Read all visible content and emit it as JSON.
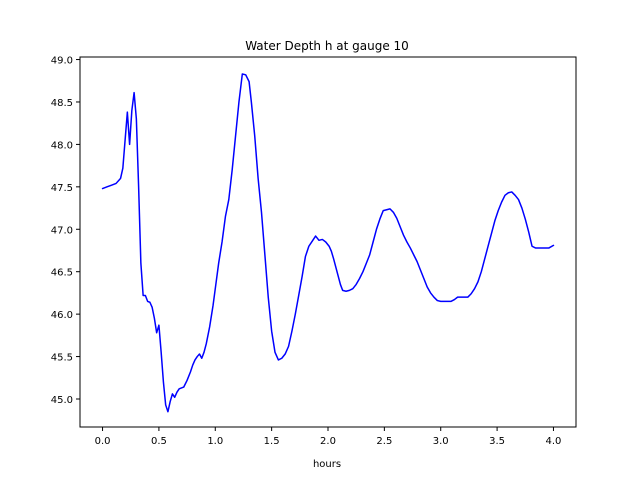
{
  "chart_data": {
    "type": "line",
    "title": "Water Depth h at gauge 10",
    "xlabel": "hours",
    "ylabel": "",
    "xlim": [
      -0.2,
      4.2
    ],
    "ylim": [
      44.67,
      49.03
    ],
    "xticks": [
      0.0,
      0.5,
      1.0,
      1.5,
      2.0,
      2.5,
      3.0,
      3.5,
      4.0
    ],
    "xtick_labels": [
      "0.0",
      "0.5",
      "1.0",
      "1.5",
      "2.0",
      "2.5",
      "3.0",
      "3.5",
      "4.0"
    ],
    "yticks": [
      45.0,
      45.5,
      46.0,
      46.5,
      47.0,
      47.5,
      48.0,
      48.5,
      49.0
    ],
    "ytick_labels": [
      "45.0",
      "45.5",
      "46.0",
      "46.5",
      "47.0",
      "47.5",
      "48.0",
      "48.5",
      "49.0"
    ],
    "grid": false,
    "series": [
      {
        "name": "h",
        "color": "#0000ff",
        "x": [
          0.0,
          0.04,
          0.08,
          0.12,
          0.16,
          0.18,
          0.2,
          0.22,
          0.24,
          0.26,
          0.28,
          0.3,
          0.32,
          0.34,
          0.36,
          0.38,
          0.4,
          0.42,
          0.44,
          0.46,
          0.48,
          0.5,
          0.52,
          0.54,
          0.56,
          0.58,
          0.6,
          0.62,
          0.64,
          0.66,
          0.68,
          0.7,
          0.72,
          0.75,
          0.78,
          0.8,
          0.82,
          0.84,
          0.86,
          0.88,
          0.9,
          0.92,
          0.95,
          0.98,
          1.0,
          1.03,
          1.06,
          1.09,
          1.12,
          1.15,
          1.18,
          1.21,
          1.24,
          1.27,
          1.3,
          1.32,
          1.35,
          1.38,
          1.41,
          1.44,
          1.47,
          1.5,
          1.53,
          1.56,
          1.59,
          1.62,
          1.65,
          1.68,
          1.71,
          1.74,
          1.77,
          1.8,
          1.83,
          1.86,
          1.89,
          1.92,
          1.95,
          1.98,
          2.01,
          2.03,
          2.05,
          2.07,
          2.09,
          2.11,
          2.13,
          2.16,
          2.19,
          2.22,
          2.25,
          2.28,
          2.31,
          2.34,
          2.37,
          2.4,
          2.43,
          2.46,
          2.49,
          2.52,
          2.55,
          2.58,
          2.61,
          2.64,
          2.67,
          2.7,
          2.73,
          2.76,
          2.79,
          2.82,
          2.85,
          2.88,
          2.91,
          2.94,
          2.97,
          3.0,
          3.03,
          3.06,
          3.09,
          3.12,
          3.15,
          3.18,
          3.21,
          3.24,
          3.27,
          3.3,
          3.33,
          3.36,
          3.39,
          3.42,
          3.45,
          3.48,
          3.51,
          3.54,
          3.57,
          3.6,
          3.63,
          3.66,
          3.69,
          3.72,
          3.75,
          3.78,
          3.81,
          3.84,
          3.87,
          3.9,
          3.93,
          3.96,
          4.0
        ],
        "y": [
          47.48,
          47.5,
          47.52,
          47.54,
          47.6,
          47.72,
          48.05,
          48.38,
          48.0,
          48.4,
          48.61,
          48.3,
          47.5,
          46.6,
          46.22,
          46.22,
          46.15,
          46.14,
          46.08,
          45.95,
          45.78,
          45.87,
          45.55,
          45.2,
          44.93,
          44.85,
          44.97,
          45.06,
          45.02,
          45.08,
          45.12,
          45.13,
          45.14,
          45.22,
          45.32,
          45.4,
          45.46,
          45.5,
          45.53,
          45.48,
          45.55,
          45.65,
          45.85,
          46.1,
          46.3,
          46.6,
          46.85,
          47.15,
          47.35,
          47.7,
          48.1,
          48.5,
          48.83,
          48.82,
          48.74,
          48.5,
          48.1,
          47.6,
          47.2,
          46.7,
          46.2,
          45.8,
          45.55,
          45.46,
          45.48,
          45.53,
          45.62,
          45.8,
          46.0,
          46.22,
          46.44,
          46.68,
          46.8,
          46.86,
          46.92,
          46.87,
          46.88,
          46.85,
          46.8,
          46.74,
          46.65,
          46.55,
          46.45,
          46.35,
          46.28,
          46.27,
          46.28,
          46.3,
          46.35,
          46.42,
          46.5,
          46.6,
          46.7,
          46.85,
          47.0,
          47.12,
          47.22,
          47.23,
          47.24,
          47.2,
          47.13,
          47.03,
          46.93,
          46.85,
          46.78,
          46.7,
          46.62,
          46.52,
          46.42,
          46.32,
          46.25,
          46.2,
          46.16,
          46.15,
          46.15,
          46.15,
          46.15,
          46.17,
          46.2,
          46.2,
          46.2,
          46.2,
          46.24,
          46.3,
          46.38,
          46.5,
          46.65,
          46.8,
          46.95,
          47.1,
          47.22,
          47.32,
          47.4,
          47.43,
          47.44,
          47.4,
          47.35,
          47.25,
          47.12,
          46.97,
          46.8,
          46.78,
          46.78,
          46.78,
          46.78,
          46.78,
          46.81
        ]
      }
    ]
  }
}
